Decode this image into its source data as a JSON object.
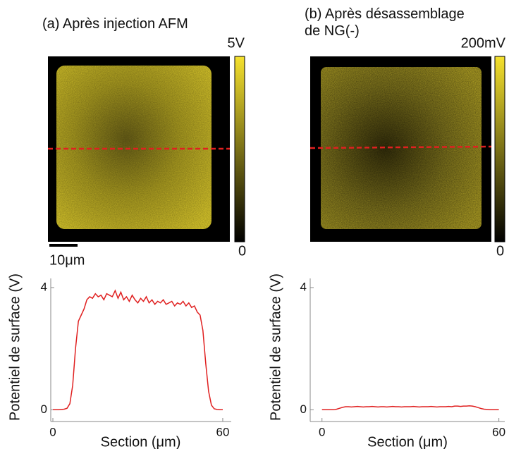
{
  "panels": [
    {
      "title": "(a) Après injection AFM",
      "colorbar_max": "5V",
      "colorbar_min": "0",
      "scalebar": "10μm"
    },
    {
      "title": "(b) Après désassemblage de NG(-)",
      "colorbar_max": "200mV",
      "colorbar_min": "0"
    }
  ],
  "chart_data": [
    {
      "type": "line",
      "xlabel": "Section (μm)",
      "ylabel": "Potentiel de surface (V)",
      "x": [
        0,
        1,
        2,
        3,
        4,
        5,
        6,
        7,
        8,
        9,
        10,
        11,
        12,
        13,
        14,
        15,
        16,
        17,
        18,
        19,
        20,
        21,
        22,
        23,
        24,
        25,
        26,
        27,
        28,
        29,
        30,
        31,
        32,
        33,
        34,
        35,
        36,
        37,
        38,
        39,
        40,
        41,
        42,
        43,
        44,
        45,
        46,
        47,
        48,
        49,
        50,
        51,
        52,
        53,
        54,
        55,
        56,
        57,
        58,
        59,
        60
      ],
      "series": [
        {
          "color": "#e02020",
          "values": [
            0,
            0,
            0,
            0.01,
            0.02,
            0.05,
            0.2,
            0.8,
            2.0,
            2.9,
            3.1,
            3.3,
            3.6,
            3.7,
            3.65,
            3.8,
            3.7,
            3.75,
            3.6,
            3.8,
            3.75,
            3.7,
            3.9,
            3.65,
            3.85,
            3.6,
            3.7,
            3.55,
            3.75,
            3.6,
            3.5,
            3.65,
            3.55,
            3.7,
            3.5,
            3.6,
            3.45,
            3.55,
            3.5,
            3.6,
            3.45,
            3.5,
            3.55,
            3.4,
            3.5,
            3.45,
            3.55,
            3.4,
            3.5,
            3.35,
            3.4,
            3.2,
            3.1,
            2.6,
            1.5,
            0.6,
            0.15,
            0.03,
            0.01,
            0,
            0
          ]
        }
      ],
      "xlim": [
        -1,
        63
      ],
      "ylim": [
        -0.2,
        4.3
      ],
      "xticks": [
        0,
        60
      ],
      "yticks": [
        0,
        4
      ]
    },
    {
      "type": "line",
      "xlabel": "Section (μm)",
      "ylabel": "Potentiel de surface (V)",
      "x": [
        0,
        1,
        2,
        3,
        4,
        5,
        6,
        7,
        8,
        9,
        10,
        11,
        12,
        13,
        14,
        15,
        16,
        17,
        18,
        19,
        20,
        21,
        22,
        23,
        24,
        25,
        26,
        27,
        28,
        29,
        30,
        31,
        32,
        33,
        34,
        35,
        36,
        37,
        38,
        39,
        40,
        41,
        42,
        43,
        44,
        45,
        46,
        47,
        48,
        49,
        50,
        51,
        52,
        53,
        54,
        55,
        56,
        57,
        58,
        59,
        60
      ],
      "series": [
        {
          "color": "#e02020",
          "values": [
            0,
            0,
            0,
            0,
            0,
            0.02,
            0.05,
            0.08,
            0.1,
            0.1,
            0.09,
            0.1,
            0.11,
            0.1,
            0.09,
            0.1,
            0.1,
            0.11,
            0.1,
            0.09,
            0.1,
            0.1,
            0.09,
            0.1,
            0.11,
            0.1,
            0.1,
            0.09,
            0.1,
            0.1,
            0.1,
            0.11,
            0.1,
            0.09,
            0.1,
            0.1,
            0.1,
            0.11,
            0.1,
            0.09,
            0.1,
            0.1,
            0.1,
            0.11,
            0.1,
            0.12,
            0.12,
            0.11,
            0.12,
            0.12,
            0.13,
            0.12,
            0.1,
            0.07,
            0.04,
            0.02,
            0.01,
            0,
            0,
            0,
            0
          ]
        }
      ],
      "xlim": [
        -4,
        62
      ],
      "ylim": [
        -0.2,
        4.3
      ],
      "xticks": [
        0,
        60
      ],
      "yticks": [
        0,
        4
      ]
    }
  ]
}
